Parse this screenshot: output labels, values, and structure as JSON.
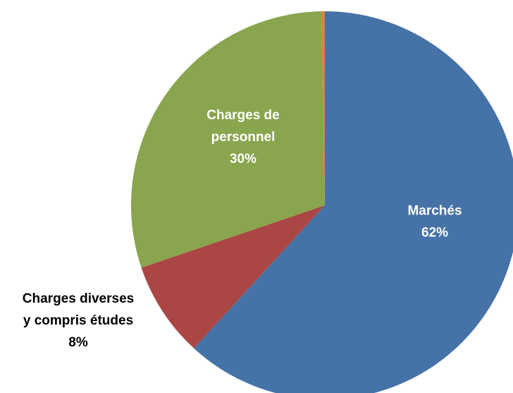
{
  "chart_data": {
    "type": "pie",
    "categories": [
      "Marchés",
      "Charges diverses y compris études",
      "Charges de personnel",
      null
    ],
    "values": [
      62,
      8,
      30,
      0.3
    ],
    "value_labels": [
      "62%",
      "8%",
      "30%",
      null
    ],
    "colors": [
      "#4572a7",
      "#aa4643",
      "#89a54e",
      "#db843d"
    ]
  }
}
